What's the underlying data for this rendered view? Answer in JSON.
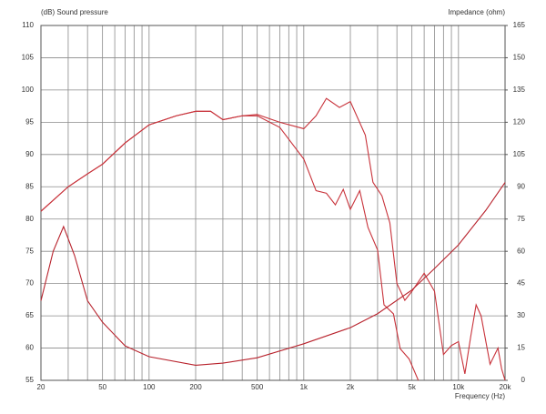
{
  "chart_data": {
    "type": "line",
    "y_label": "(dB)  Sound pressure",
    "y2_label": "Impedance  (ohm)",
    "x_label": "Frequency  (Hz)",
    "log_x": true,
    "grid": true,
    "xlim": [
      20,
      20000
    ],
    "xticks": [
      20,
      50,
      100,
      200,
      500,
      {
        "value": 1000,
        "label": "1k"
      },
      {
        "value": 2000,
        "label": "2k"
      },
      {
        "value": 5000,
        "label": "5k"
      },
      {
        "value": 10000,
        "label": "10k"
      },
      {
        "value": 20000,
        "label": "20k"
      }
    ],
    "xminor_ticks": [
      30,
      40,
      60,
      70,
      80,
      90,
      300,
      400,
      600,
      700,
      800,
      900,
      3000,
      4000,
      6000,
      7000,
      8000,
      9000
    ],
    "ylim": [
      55,
      110
    ],
    "yticks": [
      55,
      60,
      65,
      70,
      75,
      80,
      85,
      90,
      95,
      100,
      105,
      110
    ],
    "y2lim": [
      0,
      165
    ],
    "y2ticks": [
      0,
      15,
      30,
      45,
      60,
      75,
      90,
      105,
      120,
      135,
      150,
      165
    ],
    "series": [
      {
        "color": "#c8323a",
        "x": [
          20,
          30,
          40,
          50,
          70,
          100,
          150,
          200,
          250,
          300,
          400,
          500,
          700,
          1000,
          1200,
          1400,
          1700,
          2000,
          2500,
          2800,
          3200,
          3600,
          4000,
          4500,
          5000,
          6000,
          7000,
          8000,
          9000,
          10000,
          11000,
          12000,
          13000,
          14000,
          16000,
          18000,
          19000,
          20000
        ],
        "values": [
          81.2,
          85,
          87,
          88.5,
          91.8,
          94.6,
          96,
          96.7,
          96.7,
          95.4,
          96,
          96.2,
          95,
          94,
          96,
          98.7,
          97.3,
          98.2,
          93,
          85.7,
          83.6,
          79.4,
          70,
          67.4,
          68.8,
          71.6,
          68.8,
          59,
          60.4,
          61,
          56,
          61.8,
          66.7,
          65,
          57.5,
          60,
          56.8,
          55
        ]
      },
      {
        "color": "#c8323a",
        "x": [
          20,
          30,
          40,
          50,
          70,
          100,
          150,
          200,
          250,
          300,
          400,
          500,
          700,
          1000,
          1200,
          1400,
          1600,
          1800,
          2000,
          2300,
          2600,
          3000,
          3300,
          3800,
          4200,
          4800,
          5500
        ],
        "values": [
          81.2,
          85,
          87,
          88.5,
          91.8,
          94.6,
          96,
          96.7,
          96.7,
          95.4,
          96,
          96,
          94.2,
          89.3,
          84.4,
          84,
          82.2,
          84.6,
          81.5,
          84.4,
          78.7,
          75.2,
          66.7,
          65.3,
          59.9,
          58.3,
          55
        ]
      },
      {
        "color": "#b8222c",
        "axis": "y2",
        "x": [
          20,
          24,
          28,
          33,
          40,
          50,
          70,
          100,
          200,
          300,
          500,
          1000,
          2000,
          3000,
          5000,
          7000,
          10000,
          15000,
          20000
        ],
        "values": [
          37,
          60,
          71.5,
          58,
          37,
          27,
          16,
          11,
          7,
          8,
          10.5,
          17,
          24.5,
          31,
          42,
          52,
          63,
          79,
          92
        ]
      }
    ]
  }
}
